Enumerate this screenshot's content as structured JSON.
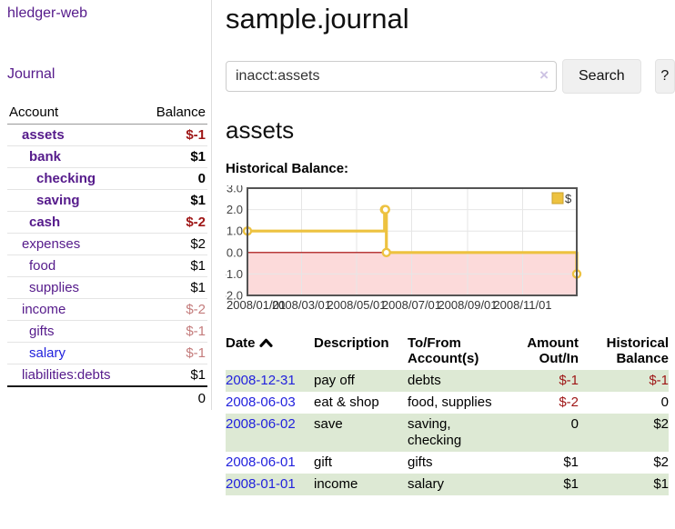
{
  "sidebar": {
    "brand": "hledger-web",
    "nav": {
      "journal": "Journal"
    },
    "table": {
      "account_header": "Account",
      "balance_header": "Balance",
      "accounts": [
        {
          "name": "assets",
          "indent": 0,
          "bold": true,
          "link_color": "purple",
          "balance": "$-1",
          "balance_style": "neg"
        },
        {
          "name": "bank",
          "indent": 1,
          "bold": true,
          "link_color": "purple",
          "balance": "$1",
          "balance_style": "pos"
        },
        {
          "name": "checking",
          "indent": 2,
          "bold": true,
          "link_color": "purple",
          "balance": "0",
          "balance_style": "pos"
        },
        {
          "name": "saving",
          "indent": 2,
          "bold": true,
          "link_color": "purple",
          "balance": "$1",
          "balance_style": "pos"
        },
        {
          "name": "cash",
          "indent": 1,
          "bold": true,
          "link_color": "purple",
          "balance": "$-2",
          "balance_style": "neg"
        },
        {
          "name": "expenses",
          "indent": 0,
          "bold": false,
          "link_color": "purple",
          "balance": "$2",
          "balance_style": "pos"
        },
        {
          "name": "food",
          "indent": 1,
          "bold": false,
          "link_color": "purple",
          "balance": "$1",
          "balance_style": "pos"
        },
        {
          "name": "supplies",
          "indent": 1,
          "bold": false,
          "link_color": "purple",
          "balance": "$1",
          "balance_style": "pos"
        },
        {
          "name": "income",
          "indent": 0,
          "bold": false,
          "link_color": "purple",
          "balance": "$-2",
          "balance_style": "neglight"
        },
        {
          "name": "gifts",
          "indent": 1,
          "bold": false,
          "link_color": "purple",
          "balance": "$-1",
          "balance_style": "neglight"
        },
        {
          "name": "salary",
          "indent": 1,
          "bold": false,
          "link_color": "blue",
          "balance": "$-1",
          "balance_style": "neglight"
        },
        {
          "name": "liabilities:debts",
          "indent": 0,
          "bold": false,
          "link_color": "purple",
          "balance": "$1",
          "balance_style": "pos"
        }
      ],
      "total": "0"
    }
  },
  "header": {
    "title": "sample.journal"
  },
  "search": {
    "value": "inacct:assets",
    "clear_icon": "×",
    "search_label": "Search",
    "help_label": "?"
  },
  "main": {
    "account_heading": "assets",
    "chart_heading": "Historical Balance:"
  },
  "chart_data": {
    "type": "line",
    "step": true,
    "title": "Historical Balance",
    "legend": [
      {
        "label": "$",
        "color": "#edc240"
      }
    ],
    "legend_position": "top-right",
    "grid": true,
    "x_range": [
      "2008-01-01",
      "2008-12-31"
    ],
    "ylim": [
      -2.0,
      3.0
    ],
    "yticks": [
      3.0,
      2.0,
      1.0,
      0.0,
      -1.0,
      -2.0
    ],
    "xtick_labels": [
      "2008/01/01",
      "2008/03/01",
      "2008/05/01",
      "2008/07/01",
      "2008/09/01",
      "2008/11/01"
    ],
    "points": [
      {
        "date": "2008-01-01",
        "value": 1
      },
      {
        "date": "2008-06-01",
        "value": 2
      },
      {
        "date": "2008-06-02",
        "value": 2
      },
      {
        "date": "2008-06-03",
        "value": 0
      },
      {
        "date": "2008-12-31",
        "value": -1
      }
    ],
    "negative_region_shaded": true
  },
  "register": {
    "columns": [
      "Date",
      "Description",
      "To/From Account(s)",
      "Amount Out/In",
      "Historical Balance"
    ],
    "sort": "ascending",
    "rows": [
      {
        "date": "2008-12-31",
        "description": "pay off",
        "accounts": "debts",
        "amount": "$-1",
        "amount_negative": true,
        "balance": "$-1",
        "balance_negative": true
      },
      {
        "date": "2008-06-03",
        "description": "eat & shop",
        "accounts": "food, supplies",
        "amount": "$-2",
        "amount_negative": true,
        "balance": "0",
        "balance_negative": false
      },
      {
        "date": "2008-06-02",
        "description": "save",
        "accounts": "saving, checking",
        "amount": "0",
        "amount_negative": false,
        "balance": "$2",
        "balance_negative": false
      },
      {
        "date": "2008-06-01",
        "description": "gift",
        "accounts": "gifts",
        "amount": "$1",
        "amount_negative": false,
        "balance": "$2",
        "balance_negative": false
      },
      {
        "date": "2008-01-01",
        "description": "income",
        "accounts": "salary",
        "amount": "$1",
        "amount_negative": false,
        "balance": "$1",
        "balance_negative": false
      }
    ]
  },
  "colors": {
    "purple_link": "#551a8b",
    "blue_link": "#2222dd",
    "negative_dark": "#9e1515",
    "negative_light": "#c47c7c",
    "row_stripe_green": "#dde9d4",
    "chart_line": "#edc240",
    "chart_line_border": "#c9a02e",
    "chart_negative_fill": "#fcdada",
    "chart_zero_line": "#a40000",
    "chart_border": "#545454",
    "chart_grid": "#e6e6e6",
    "button_bg": "#f0f0f0"
  }
}
